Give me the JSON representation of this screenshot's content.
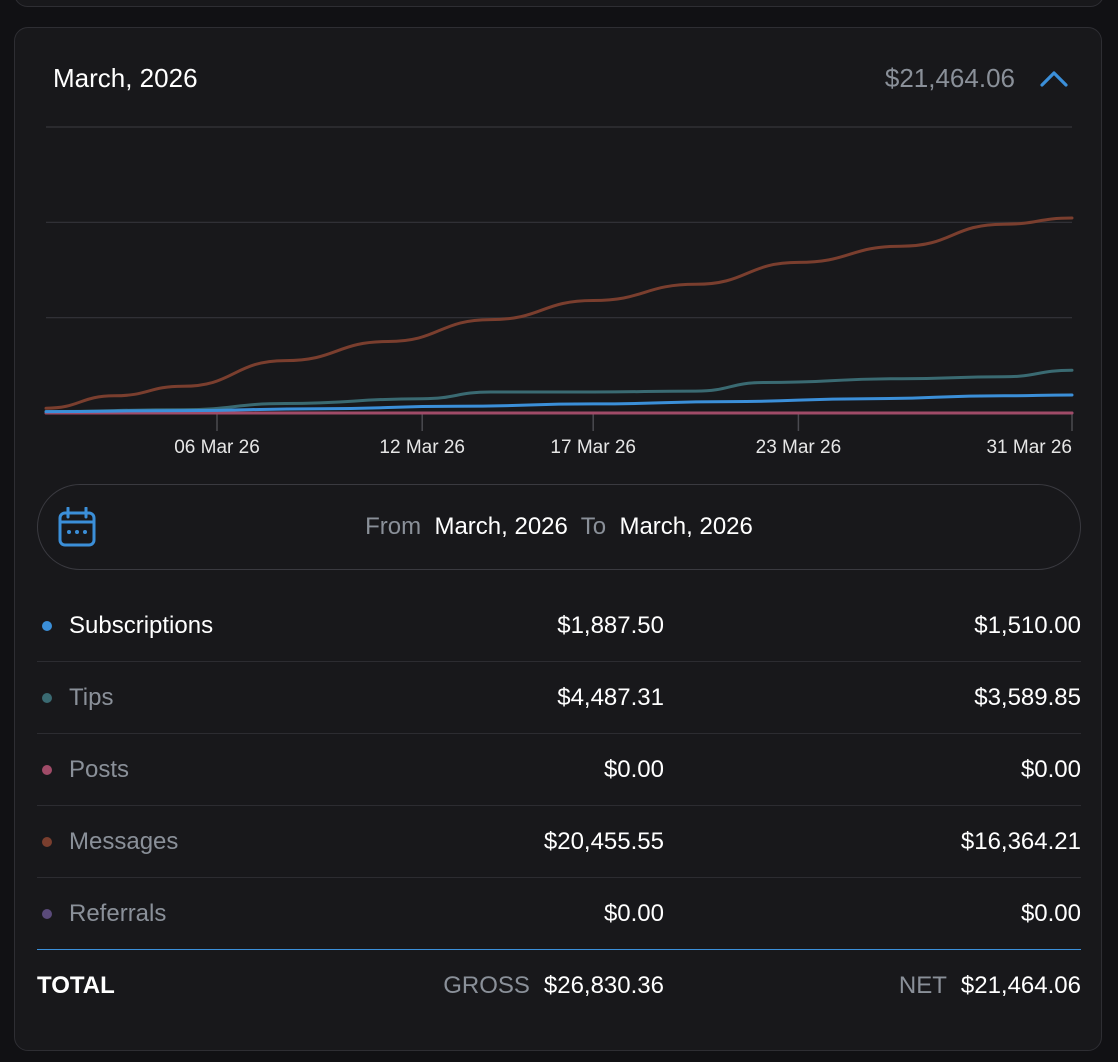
{
  "card": {
    "period_title": "March, 2026",
    "header_total": "$21,464.06",
    "collapse_icon": "chevron-up-icon",
    "accent_color": "#3b8fd9"
  },
  "chart_data": {
    "type": "line",
    "title": "",
    "xlabel": "",
    "ylabel": "",
    "x_range": [
      "01 Mar 26",
      "31 Mar 26"
    ],
    "x_tick_labels": [
      "06 Mar 26",
      "12 Mar 26",
      "17 Mar 26",
      "23 Mar 26",
      "31 Mar 26"
    ],
    "y_range": [
      0,
      30000
    ],
    "grid": true,
    "legend": "none",
    "series": [
      {
        "name": "Subscriptions",
        "color": "#3b8fd9",
        "x": [
          "01 Mar 26",
          "05 Mar 26",
          "09 Mar 26",
          "13 Mar 26",
          "17 Mar 26",
          "21 Mar 26",
          "25 Mar 26",
          "29 Mar 26",
          "31 Mar 26"
        ],
        "y": [
          150,
          250,
          450,
          700,
          950,
          1200,
          1500,
          1800,
          1887.5
        ]
      },
      {
        "name": "Tips",
        "color": "#3a6a72",
        "x": [
          "01 Mar 26",
          "05 Mar 26",
          "08 Mar 26",
          "12 Mar 26",
          "14 Mar 26",
          "17 Mar 26",
          "20 Mar 26",
          "22 Mar 26",
          "26 Mar 26",
          "29 Mar 26",
          "31 Mar 26"
        ],
        "y": [
          150,
          350,
          1000,
          1500,
          2200,
          2200,
          2300,
          3200,
          3600,
          3800,
          4487.31
        ]
      },
      {
        "name": "Posts",
        "color": "#a04b68",
        "x": [
          "01 Mar 26",
          "31 Mar 26"
        ],
        "y": [
          0,
          0
        ]
      },
      {
        "name": "Messages",
        "color": "#7a3e2e",
        "x": [
          "01 Mar 26",
          "03 Mar 26",
          "05 Mar 26",
          "08 Mar 26",
          "11 Mar 26",
          "14 Mar 26",
          "17 Mar 26",
          "20 Mar 26",
          "23 Mar 26",
          "26 Mar 26",
          "29 Mar 26",
          "31 Mar 26"
        ],
        "y": [
          500,
          1800,
          2800,
          5500,
          7500,
          9800,
          11800,
          13500,
          15800,
          17500,
          19800,
          20455.55
        ]
      },
      {
        "name": "Referrals",
        "color": "#5a4a7a",
        "x": [
          "01 Mar 26",
          "31 Mar 26"
        ],
        "y": [
          0,
          0
        ]
      }
    ]
  },
  "date_range": {
    "calendar_icon": "calendar-icon",
    "from_label": "From",
    "from_value": "March, 2026",
    "to_label": "To",
    "to_value": "March, 2026"
  },
  "rows": [
    {
      "name": "Subscriptions",
      "gross": "$1,887.50",
      "net": "$1,510.00",
      "color": "#3b8fd9",
      "active": true
    },
    {
      "name": "Tips",
      "gross": "$4,487.31",
      "net": "$3,589.85",
      "color": "#3a6a72",
      "active": false
    },
    {
      "name": "Posts",
      "gross": "$0.00",
      "net": "$0.00",
      "color": "#a04b68",
      "active": false
    },
    {
      "name": "Messages",
      "gross": "$20,455.55",
      "net": "$16,364.21",
      "color": "#7a3e2e",
      "active": false
    },
    {
      "name": "Referrals",
      "gross": "$0.00",
      "net": "$0.00",
      "color": "#5a4a7a",
      "active": false
    }
  ],
  "totals": {
    "label": "TOTAL",
    "gross_tag": "GROSS",
    "gross_value": "$26,830.36",
    "net_tag": "NET",
    "net_value": "$21,464.06"
  }
}
